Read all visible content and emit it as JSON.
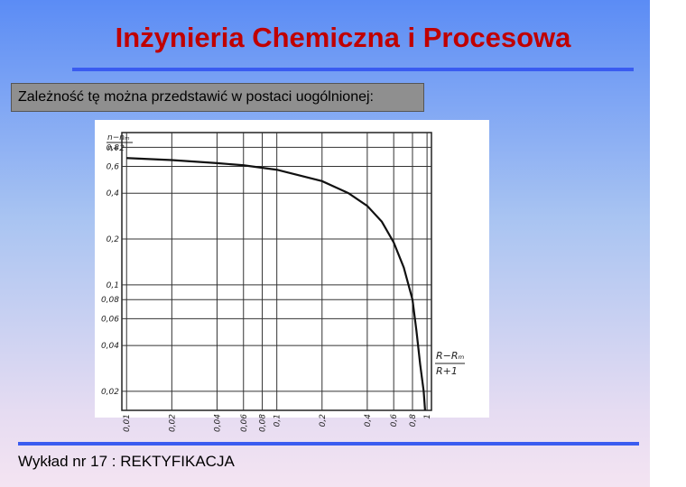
{
  "title": "Inżynieria Chemiczna i Procesowa",
  "subtitle": "Zależność tę można przedstawić w postaci uogólnionej:",
  "footer": "Wykład nr 17  : REKTYFIKACJA",
  "chart_data": {
    "type": "line",
    "log_x": true,
    "log_y": true,
    "grid": true,
    "y_label": {
      "numerator": "n−nₘ",
      "denominator": "n+2"
    },
    "x_label": {
      "numerator": "R−Rₘ",
      "denominator": "R+1"
    },
    "xlim": [
      0.0093,
      1.07
    ],
    "ylim": [
      0.015,
      1.0
    ],
    "xticks": [
      {
        "value": 0.01,
        "label": "0,01"
      },
      {
        "value": 0.02,
        "label": "0,02"
      },
      {
        "value": 0.04,
        "label": "0,04"
      },
      {
        "value": 0.06,
        "label": "0,06"
      },
      {
        "value": 0.08,
        "label": "0,08"
      },
      {
        "value": 0.1,
        "label": "0,1"
      },
      {
        "value": 0.2,
        "label": "0,2"
      },
      {
        "value": 0.4,
        "label": "0,4"
      },
      {
        "value": 0.6,
        "label": "0,6"
      },
      {
        "value": 0.8,
        "label": "0,8"
      },
      1
    ],
    "yticks": [
      {
        "value": 0.02,
        "label": "0,02"
      },
      {
        "value": 0.04,
        "label": "0,04"
      },
      {
        "value": 0.06,
        "label": "0,06"
      },
      {
        "value": 0.08,
        "label": "0,08"
      },
      {
        "value": 0.1,
        "label": "0,1"
      },
      {
        "value": 0.2,
        "label": "0,2"
      },
      {
        "value": 0.4,
        "label": "0,4"
      },
      {
        "value": 0.6,
        "label": "0,6"
      },
      {
        "value": 0.8,
        "label": "0,8"
      }
    ],
    "x": [
      0.01,
      0.02,
      0.04,
      0.06,
      0.1,
      0.2,
      0.3,
      0.4,
      0.5,
      0.6,
      0.7,
      0.8,
      0.85,
      0.9,
      0.95,
      0.97
    ],
    "series": [
      {
        "color": "#111111",
        "values": [
          0.68,
          0.66,
          0.63,
          0.61,
          0.57,
          0.48,
          0.4,
          0.33,
          0.26,
          0.19,
          0.13,
          0.08,
          0.05,
          0.03,
          0.02,
          0.015
        ]
      }
    ]
  }
}
